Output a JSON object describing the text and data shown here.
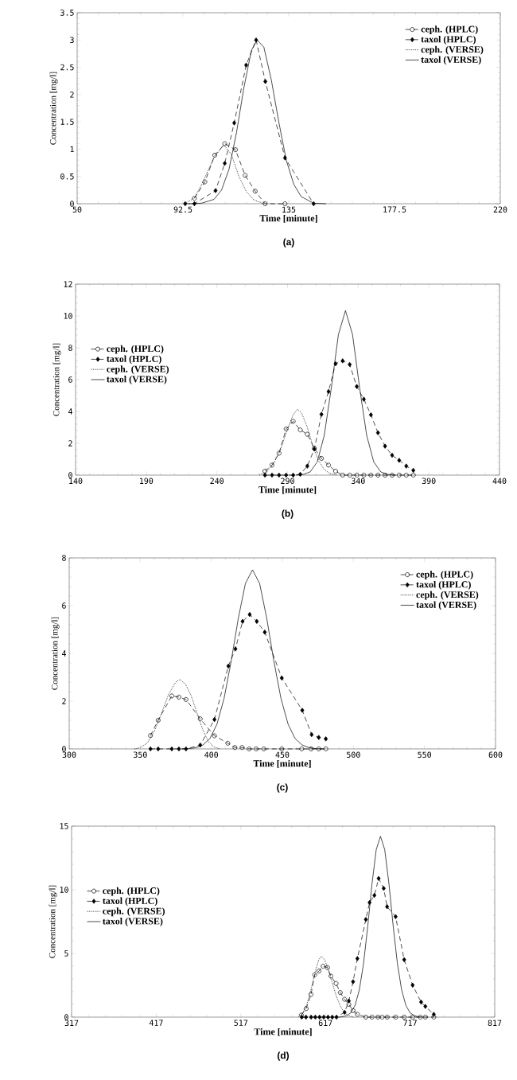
{
  "chart_data": [
    {
      "type": "line",
      "xlabel": "Time  [minute]",
      "ylabel": "Concentration [mg/l]",
      "annotations": [
        "(a)"
      ],
      "legend": "top right",
      "xlim": [
        50,
        220
      ],
      "xticks": [
        50,
        92.5,
        135,
        177.5,
        220
      ],
      "ylim": [
        0,
        3.5
      ],
      "yticks": [
        0,
        0.5,
        1,
        1.5,
        2,
        2.5,
        3,
        3.5
      ],
      "series": [
        {
          "name": "ceph. (HPLC)",
          "color": "#000000",
          "marker": "circle",
          "line_style": "dashed",
          "x": [
            97.1,
            101.3,
            105.3,
            109.3,
            113.6,
            117.5,
            121.5,
            125.5,
            133.5
          ],
          "values": [
            0.1,
            0.4,
            0.89,
            1.1,
            0.99,
            0.52,
            0.23,
            0,
            0
          ]
        },
        {
          "name": "taxol (HPLC)",
          "color": "#000000",
          "marker": "diamond",
          "line_style": "dashed",
          "x": [
            93.4,
            97.1,
            105.6,
            109.3,
            113.1,
            117.9,
            121.9,
            125.6,
            133.5,
            145
          ],
          "values": [
            0,
            0,
            0.24,
            0.74,
            1.48,
            2.54,
            3,
            2.24,
            0.84,
            0
          ]
        },
        {
          "name": "ceph. (VERSE)",
          "color": "#000000",
          "marker": "none",
          "line_style": "dotted",
          "x": [
            93,
            97,
            100,
            105,
            109,
            112,
            115,
            118,
            121,
            125
          ],
          "values": [
            0,
            0.1,
            0.35,
            0.85,
            1.08,
            0.9,
            0.5,
            0.22,
            0.07,
            0
          ]
        },
        {
          "name": "taxol (VERSE)",
          "color": "#000000",
          "marker": "none",
          "line_style": "solid",
          "x": [
            95,
            100,
            105,
            108,
            111,
            114,
            117,
            120,
            122.3,
            125,
            128,
            131,
            134,
            137,
            140,
            145,
            150
          ],
          "values": [
            0,
            0.01,
            0.08,
            0.25,
            0.63,
            1.3,
            2.13,
            2.81,
            3,
            2.87,
            2.27,
            1.5,
            0.8,
            0.36,
            0.13,
            0.01,
            0
          ]
        }
      ]
    },
    {
      "type": "line",
      "xlabel": "Time  [minute]",
      "ylabel": "Concentration [mg/l]",
      "annotations": [
        "(b)"
      ],
      "legend": "left",
      "xlim": [
        140,
        440
      ],
      "xticks": [
        140,
        190,
        240,
        290,
        340,
        390,
        440
      ],
      "ylim": [
        0,
        12
      ],
      "yticks": [
        0,
        2,
        4,
        6,
        8,
        10,
        12
      ],
      "series": [
        {
          "name": "ceph. (HPLC)",
          "color": "#000000",
          "marker": "circle",
          "line_style": "dashed",
          "x": [
            274,
            279,
            284,
            289,
            294,
            299,
            304,
            309,
            314,
            319,
            324,
            329,
            334,
            339,
            344,
            349,
            354,
            359,
            364,
            369,
            374,
            379
          ],
          "values": [
            0.25,
            0.63,
            1.38,
            2.9,
            3.38,
            2.84,
            2.57,
            1.68,
            1.05,
            0.63,
            0.25,
            0,
            0,
            0,
            0,
            0,
            0,
            0,
            0,
            0,
            0,
            0
          ]
        },
        {
          "name": "taxol (HPLC)",
          "color": "#000000",
          "marker": "diamond",
          "line_style": "dashed",
          "x": [
            274,
            279,
            284,
            289,
            294,
            299,
            304,
            309,
            314,
            319,
            324,
            329,
            334,
            339,
            344,
            349,
            354,
            359,
            364,
            369,
            374,
            379
          ],
          "values": [
            0,
            0,
            0,
            0,
            0,
            0.05,
            0.57,
            1.64,
            3.82,
            5.25,
            7,
            7.18,
            6.95,
            5.57,
            4.77,
            3.79,
            2.66,
            1.82,
            1.25,
            0.93,
            0.57,
            0.3
          ]
        },
        {
          "name": "ceph. (VERSE)",
          "color": "#000000",
          "marker": "none",
          "line_style": "dotted",
          "x": [
            270,
            275,
            280,
            285,
            290,
            294,
            297,
            300,
            304,
            308,
            312,
            316,
            320,
            325
          ],
          "values": [
            0,
            0.2,
            0.7,
            1.6,
            2.9,
            3.8,
            4.14,
            3.9,
            3,
            1.8,
            0.9,
            0.35,
            0.1,
            0
          ]
        },
        {
          "name": "taxol (VERSE)",
          "color": "#000000",
          "marker": "none",
          "line_style": "solid",
          "x": [
            296,
            301,
            306,
            311,
            316,
            321,
            326,
            331,
            336,
            341,
            346,
            351,
            356,
            361,
            366
          ],
          "values": [
            0,
            0.04,
            0.2,
            0.83,
            2.5,
            5.49,
            8.83,
            10.34,
            8.83,
            5.49,
            2.5,
            0.83,
            0.2,
            0.04,
            0
          ]
        }
      ]
    },
    {
      "type": "line",
      "xlabel": "Time  [minute]",
      "ylabel": "Concentration [mg/l]",
      "annotations": [
        "(c)"
      ],
      "legend": "top right",
      "xlim": [
        300,
        600
      ],
      "xticks": [
        300,
        350,
        400,
        450,
        500,
        550,
        600
      ],
      "ylim": [
        0,
        8
      ],
      "yticks": [
        0,
        2,
        4,
        6,
        8
      ],
      "series": [
        {
          "name": "ceph. (HPLC)",
          "color": "#000000",
          "marker": "circle",
          "line_style": "dashed",
          "x": [
            357.2,
            362.6,
            372.2,
            377.2,
            382.2,
            392.2,
            402.2,
            411.6,
            416.6,
            421.6,
            426.6,
            431.6,
            437,
            449.6,
            463.6,
            470.2,
            475.6,
            480.6
          ],
          "values": [
            0.56,
            1.2,
            2.22,
            2.17,
            2.07,
            1.26,
            0.55,
            0.24,
            0.06,
            0.06,
            0,
            0,
            0,
            0,
            0,
            0,
            0,
            0
          ]
        },
        {
          "name": "taxol (HPLC)",
          "color": "#000000",
          "marker": "diamond",
          "line_style": "dashed",
          "x": [
            357.2,
            362.6,
            372.2,
            377.2,
            382.2,
            392.2,
            402.2,
            412,
            417,
            422,
            427,
            432,
            437.6,
            449.6,
            464,
            470.6,
            475.6,
            480.6
          ],
          "values": [
            0,
            0,
            0,
            0,
            0,
            0.16,
            1.23,
            3.47,
            4.19,
            5.34,
            5.63,
            5.34,
            4.89,
            2.97,
            1.62,
            0.6,
            0.48,
            0.42
          ]
        },
        {
          "name": "ceph. (VERSE)",
          "color": "#000000",
          "marker": "none",
          "line_style": "dotted",
          "x": [
            346,
            350,
            355,
            360,
            365,
            370,
            375,
            378,
            382,
            386,
            390,
            394,
            398,
            402,
            406
          ],
          "values": [
            0,
            0.05,
            0.25,
            0.75,
            1.5,
            2.3,
            2.8,
            2.91,
            2.7,
            2.2,
            1.5,
            0.8,
            0.3,
            0.08,
            0
          ]
        },
        {
          "name": "taxol (VERSE)",
          "color": "#000000",
          "marker": "none",
          "line_style": "solid",
          "x": [
            379,
            384,
            389,
            394,
            399,
            404,
            409,
            414,
            419,
            424,
            429,
            434,
            439,
            444,
            449,
            454,
            459,
            464,
            469,
            474,
            479
          ],
          "values": [
            0,
            0.01,
            0.05,
            0.16,
            0.43,
            1.04,
            2.12,
            3.68,
            5.47,
            6.93,
            7.5,
            6.93,
            5.47,
            3.68,
            2.12,
            1.04,
            0.43,
            0.16,
            0.05,
            0.01,
            0
          ]
        }
      ]
    },
    {
      "type": "line",
      "xlabel": "Time [minute]",
      "ylabel": "Concentration [mg/l]",
      "annotations": [
        "(d)"
      ],
      "legend": "left",
      "xlim": [
        317,
        817
      ],
      "xticks": [
        317,
        417,
        517,
        617,
        717,
        817
      ],
      "ylim": [
        0,
        15
      ],
      "yticks": [
        0,
        5,
        10,
        15
      ],
      "series": [
        {
          "name": "ceph. (HPLC)",
          "color": "#000000",
          "marker": "circle",
          "line_style": "dashed",
          "x": [
            588.5,
            594.2,
            599.9,
            604.3,
            609.3,
            614.3,
            619.4,
            623.4,
            629.5,
            634.5,
            639.6,
            644.6,
            649.6,
            654.7,
            664.7,
            672,
            679,
            684,
            690,
            700,
            710,
            720,
            729,
            735,
            745
          ],
          "values": [
            0.16,
            0.67,
            1.78,
            3.33,
            3.62,
            4,
            3.89,
            3.22,
            2.64,
            1.93,
            1.4,
            1,
            0.51,
            0.22,
            0,
            0,
            0,
            0,
            0,
            0,
            0,
            0,
            0,
            0,
            0
          ]
        },
        {
          "name": "taxol (HPLC)",
          "color": "#000000",
          "marker": "diamond",
          "line_style": "dashed",
          "x": [
            589,
            594,
            600,
            605,
            610,
            615,
            620,
            625,
            630,
            639.6,
            644.6,
            649.6,
            654.7,
            664.7,
            669.1,
            674.8,
            679.8,
            685.8,
            689.8,
            699.9,
            710,
            720,
            730,
            735,
            745
          ],
          "values": [
            0,
            0,
            0,
            0,
            0,
            0,
            0,
            0,
            0,
            0.38,
            1.27,
            2.78,
            4.6,
            7.67,
            9,
            9.56,
            10.89,
            10.11,
            8.67,
            7.89,
            4.51,
            2.51,
            1.18,
            0.84,
            0.22
          ]
        },
        {
          "name": "ceph. (VERSE)",
          "color": "#000000",
          "marker": "none",
          "line_style": "dotted",
          "x": [
            585,
            590,
            595,
            600,
            605,
            609,
            612,
            616,
            620,
            625,
            630,
            635,
            640,
            645,
            650
          ],
          "values": [
            0,
            0.3,
            1,
            2.2,
            3.6,
            4.5,
            4.78,
            4.5,
            3.8,
            2.7,
            1.6,
            0.8,
            0.3,
            0.1,
            0
          ]
        },
        {
          "name": "taxol (VERSE)",
          "color": "#000000",
          "marker": "none",
          "line_style": "solid",
          "x": [
            632,
            637,
            642,
            647,
            652,
            657,
            662,
            667,
            672,
            677,
            682,
            687,
            692,
            697,
            702,
            707,
            712,
            717,
            722,
            727,
            732
          ],
          "values": [
            0,
            0.03,
            0.11,
            0.34,
            0.92,
            2.13,
            4.21,
            7.16,
            10.48,
            13.16,
            14.2,
            13.16,
            10.48,
            7.16,
            4.21,
            2.13,
            0.92,
            0.34,
            0.11,
            0.03,
            0
          ]
        }
      ]
    }
  ]
}
